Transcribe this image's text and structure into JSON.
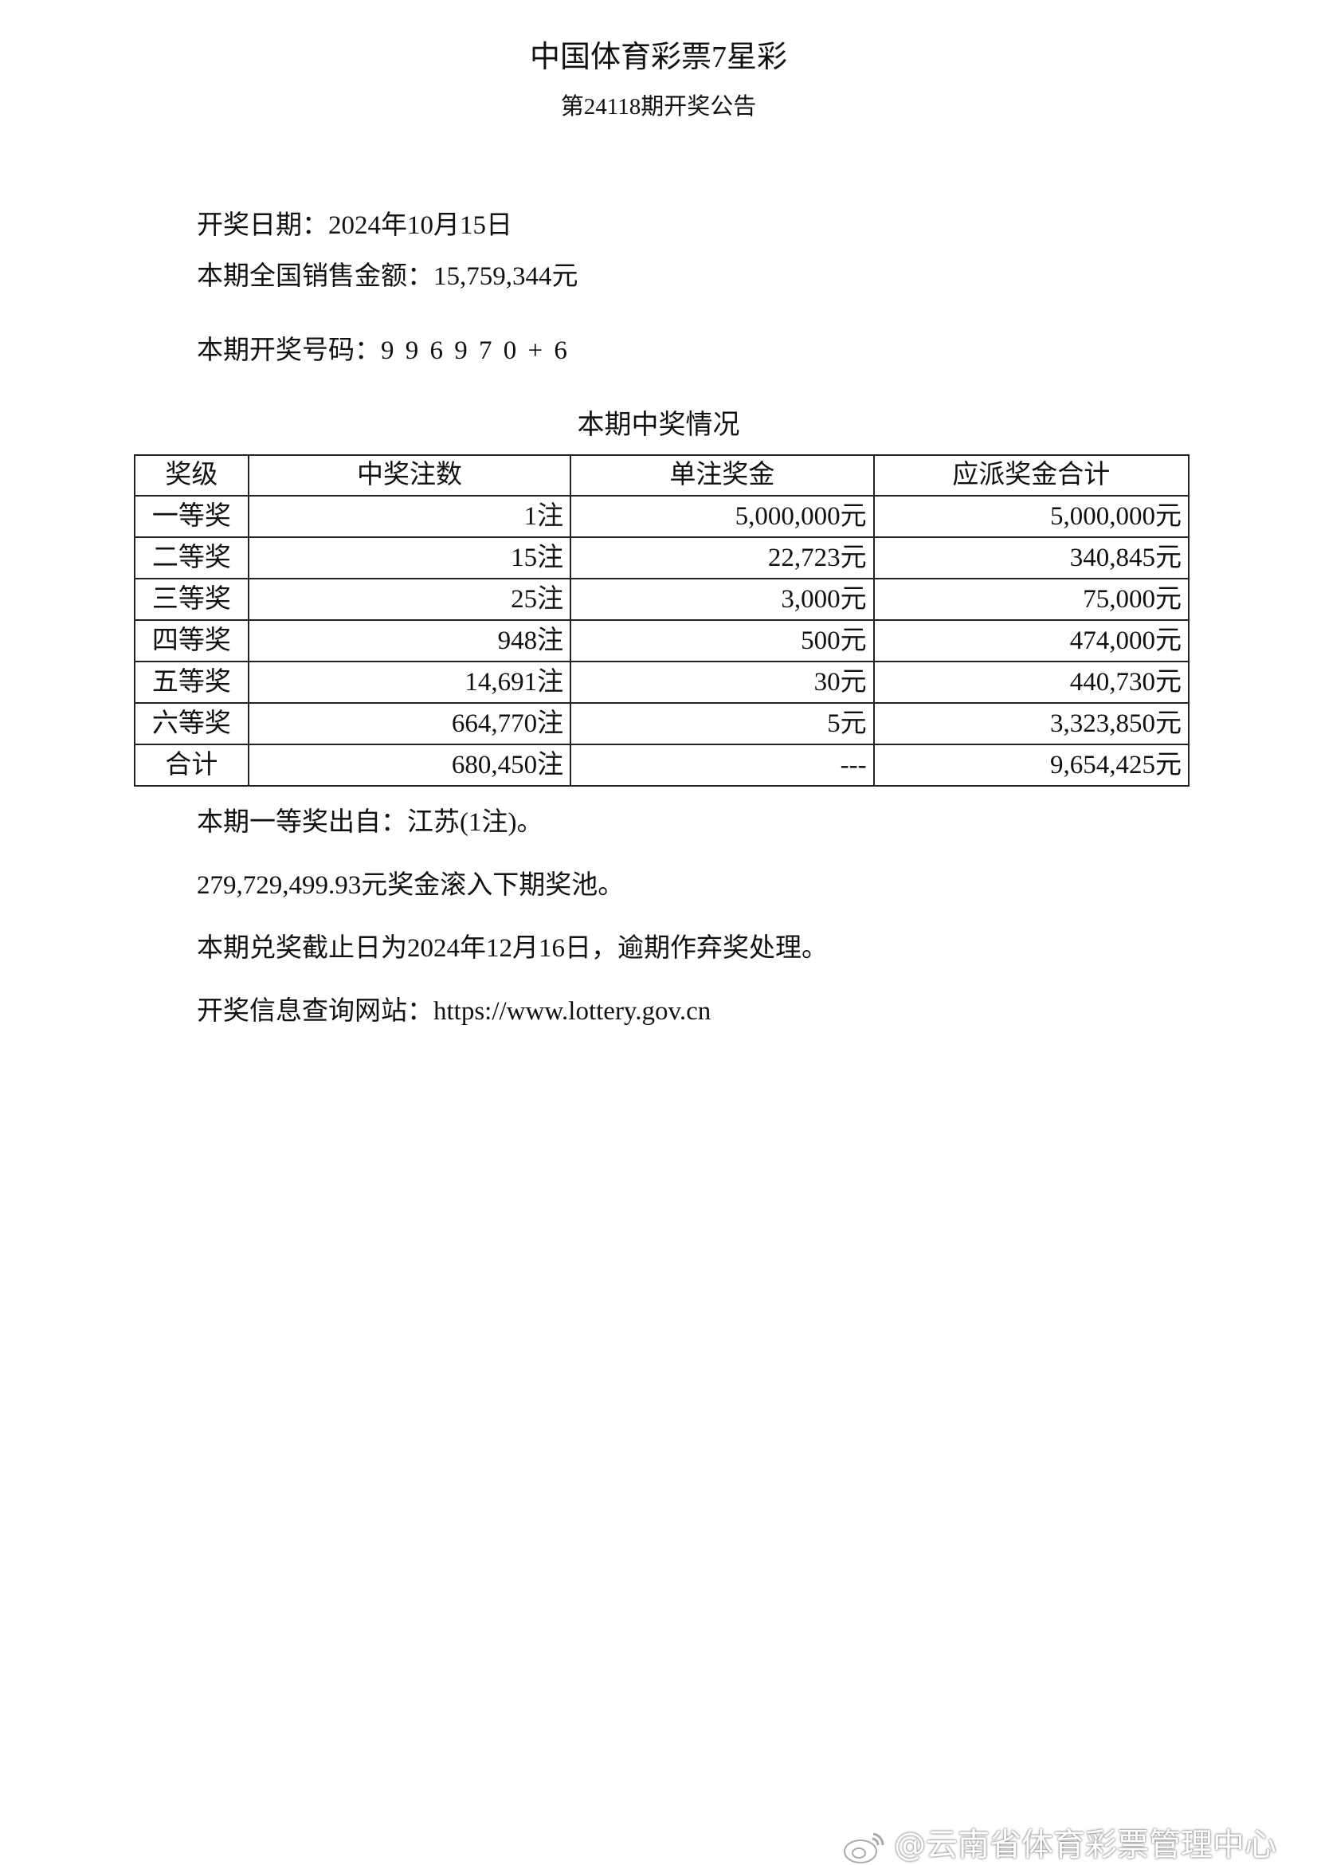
{
  "header": {
    "title": "中国体育彩票7星彩",
    "subtitle": "第24118期开奖公告"
  },
  "info": {
    "draw_date": "开奖日期：2024年10月15日",
    "sales": "本期全国销售金额：15,759,344元",
    "numbers": "本期开奖号码：9 9 6 9 7 0 + 6"
  },
  "prize_table": {
    "title": "本期中奖情况",
    "headers": [
      "奖级",
      "中奖注数",
      "单注奖金",
      "应派奖金合计"
    ],
    "rows": [
      [
        "一等奖",
        "1注",
        "5,000,000元",
        "5,000,000元"
      ],
      [
        "二等奖",
        "15注",
        "22,723元",
        "340,845元"
      ],
      [
        "三等奖",
        "25注",
        "3,000元",
        "75,000元"
      ],
      [
        "四等奖",
        "948注",
        "500元",
        "474,000元"
      ],
      [
        "五等奖",
        "14,691注",
        "30元",
        "440,730元"
      ],
      [
        "六等奖",
        "664,770注",
        "5元",
        "3,323,850元"
      ],
      [
        "合计",
        "680,450注",
        "---",
        "9,654,425元"
      ]
    ]
  },
  "notes": {
    "first_prize_origin": "本期一等奖出自：江苏(1注)。",
    "rollover": "279,729,499.93元奖金滚入下期奖池。",
    "deadline": "本期兑奖截止日为2024年12月16日，逾期作弃奖处理。",
    "website": "开奖信息查询网站：https://www.lottery.gov.cn"
  },
  "watermark": {
    "icon": "weibo-icon",
    "text": "@云南省体育彩票管理中心"
  }
}
